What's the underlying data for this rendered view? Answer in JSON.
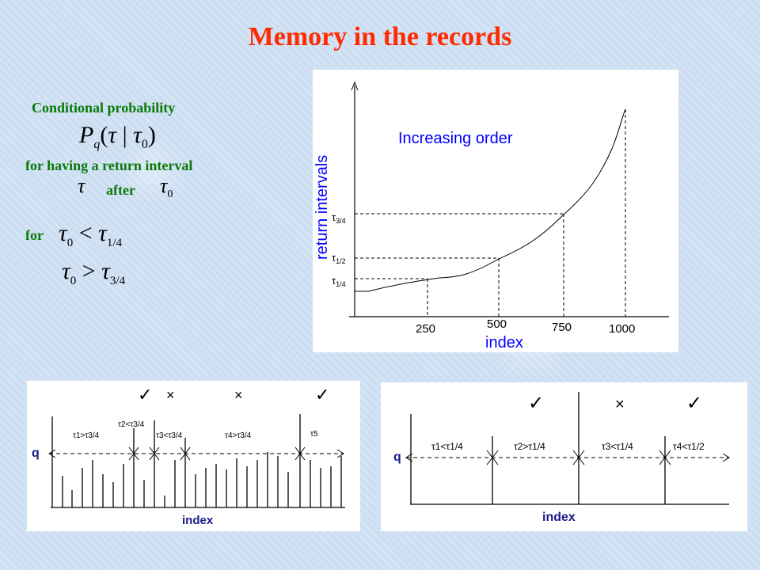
{
  "title": "Memory in the records",
  "left": {
    "cond_prob": "Conditional probability",
    "formula": "P_q(τ | τ_0)",
    "return_interval": "for having a return interval",
    "tau": "τ",
    "after": "after",
    "tau0": "τ_0",
    "for": "for",
    "cond1": "τ_0 < τ_1/4",
    "cond2": "τ_0 > τ_3/4"
  },
  "main_chart": {
    "title": "Increasing order",
    "xlabel": "index",
    "ylabel": "return intervals",
    "x_ticks": [
      "250",
      "500",
      "750",
      "1000"
    ],
    "y_ticks": [
      "τ_1/4",
      "τ_1/2",
      "τ_3/4"
    ]
  },
  "bottom_left": {
    "q": "q",
    "xlabel": "index",
    "intervals": [
      "τ1>τ3/4",
      "τ2<τ3/4",
      "τ3<τ3/4",
      "τ4>τ3/4",
      "τ5"
    ],
    "marks": [
      "✓",
      "×",
      "×",
      "✓"
    ]
  },
  "bottom_right": {
    "q": "q",
    "xlabel": "index",
    "intervals": [
      "τ1<τ1/4",
      "τ2>τ1/4",
      "τ3<τ1/4",
      "τ4<τ1/2"
    ],
    "marks": [
      "✓",
      "×",
      "✓"
    ]
  },
  "colors": {
    "title": "#ff2a00",
    "green": "#0a7a0a",
    "blue": "#0000ff",
    "navy": "#1a1a8c"
  }
}
